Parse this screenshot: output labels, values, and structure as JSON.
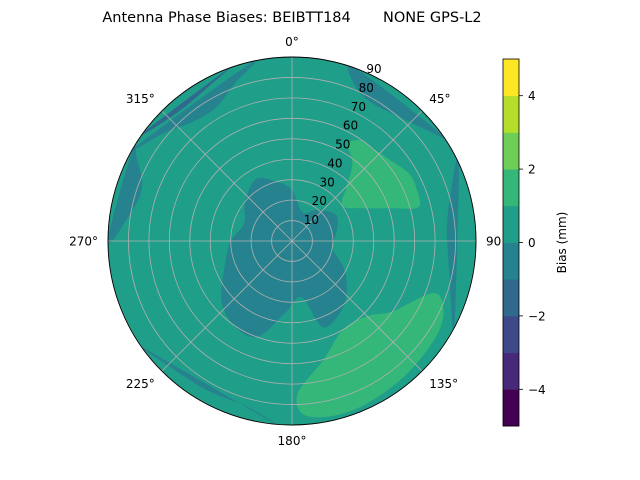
{
  "chart_data": {
    "type": "polar-contour",
    "title": "Antenna Phase Biases: BEIBTT184       NONE GPS-L2",
    "azimuth_ticks": [
      {
        "deg": 0,
        "label": "0°"
      },
      {
        "deg": 45,
        "label": "45°"
      },
      {
        "deg": 90,
        "label": "90"
      },
      {
        "deg": 135,
        "label": "135°"
      },
      {
        "deg": 180,
        "label": "180°"
      },
      {
        "deg": 225,
        "label": "225°"
      },
      {
        "deg": 270,
        "label": "270°"
      },
      {
        "deg": 315,
        "label": "315°"
      }
    ],
    "radial_ticks": [
      {
        "value": 10,
        "label": "10"
      },
      {
        "value": 20,
        "label": "20"
      },
      {
        "value": 30,
        "label": "30"
      },
      {
        "value": 40,
        "label": "40"
      },
      {
        "value": 50,
        "label": "50"
      },
      {
        "value": 60,
        "label": "60"
      },
      {
        "value": 70,
        "label": "70"
      },
      {
        "value": 80,
        "label": "80"
      },
      {
        "value": 90,
        "label": "90"
      }
    ],
    "rlim": [
      0,
      90
    ],
    "grid": true,
    "background_level": 0.5,
    "regions": [
      {
        "name": "ring-zone",
        "level": 0.5,
        "points": [
          [
            0,
            40
          ],
          [
            20,
            40
          ],
          [
            40,
            45
          ],
          [
            50,
            48
          ],
          [
            60,
            40
          ],
          [
            75,
            35
          ],
          [
            90,
            38
          ],
          [
            110,
            42
          ],
          [
            125,
            40
          ],
          [
            140,
            38
          ],
          [
            160,
            40
          ],
          [
            180,
            45
          ],
          [
            200,
            45
          ],
          [
            220,
            45
          ],
          [
            240,
            46
          ],
          [
            255,
            48
          ],
          [
            270,
            45
          ],
          [
            285,
            40
          ],
          [
            300,
            40
          ],
          [
            315,
            38
          ],
          [
            330,
            40
          ],
          [
            345,
            40
          ]
        ]
      },
      {
        "name": "ne-positive",
        "level": 1.5,
        "points": [
          [
            30,
            55
          ],
          [
            38,
            48
          ],
          [
            45,
            38
          ],
          [
            55,
            30
          ],
          [
            65,
            38
          ],
          [
            72,
            52
          ],
          [
            75,
            64
          ],
          [
            68,
            66
          ],
          [
            60,
            66
          ],
          [
            50,
            62
          ],
          [
            40,
            60
          ],
          [
            35,
            60
          ]
        ]
      },
      {
        "name": "se-positive",
        "level": 1.5,
        "points": [
          [
            110,
            75
          ],
          [
            125,
            60
          ],
          [
            135,
            52
          ],
          [
            150,
            50
          ],
          [
            165,
            60
          ],
          [
            178,
            75
          ],
          [
            175,
            86
          ],
          [
            160,
            88
          ],
          [
            140,
            86
          ],
          [
            120,
            84
          ]
        ]
      },
      {
        "name": "center-negative",
        "level": -0.5,
        "points": [
          [
            0,
            25
          ],
          [
            20,
            15
          ],
          [
            40,
            20
          ],
          [
            60,
            25
          ],
          [
            80,
            22
          ],
          [
            100,
            20
          ],
          [
            120,
            30
          ],
          [
            140,
            40
          ],
          [
            160,
            45
          ],
          [
            170,
            28
          ],
          [
            185,
            35
          ],
          [
            200,
            50
          ],
          [
            215,
            50
          ],
          [
            230,
            45
          ],
          [
            250,
            35
          ],
          [
            270,
            30
          ],
          [
            290,
            25
          ],
          [
            310,
            30
          ],
          [
            330,
            35
          ],
          [
            345,
            30
          ]
        ]
      },
      {
        "name": "nw-rim-negative",
        "level": -0.5,
        "points": [
          [
            300,
            90
          ],
          [
            310,
            82
          ],
          [
            320,
            76
          ],
          [
            330,
            75
          ],
          [
            340,
            82
          ],
          [
            348,
            90
          ]
        ]
      },
      {
        "name": "west-rim-negative",
        "level": -0.5,
        "points": [
          [
            270,
            90
          ],
          [
            280,
            80
          ],
          [
            290,
            78
          ],
          [
            298,
            86
          ],
          [
            300,
            90
          ]
        ]
      },
      {
        "name": "ne-rim-negative",
        "level": -0.5,
        "points": [
          [
            20,
            90
          ],
          [
            22,
            82
          ],
          [
            30,
            78
          ],
          [
            40,
            80
          ],
          [
            50,
            85
          ],
          [
            55,
            90
          ]
        ]
      },
      {
        "name": "east-rim-negative",
        "level": -0.5,
        "points": [
          [
            65,
            90
          ],
          [
            72,
            82
          ],
          [
            85,
            76
          ],
          [
            100,
            78
          ],
          [
            112,
            84
          ],
          [
            118,
            90
          ]
        ]
      },
      {
        "name": "south-rim-negative",
        "level": -0.5,
        "points": [
          [
            185,
            90
          ],
          [
            195,
            84
          ],
          [
            210,
            84
          ],
          [
            225,
            86
          ],
          [
            235,
            90
          ]
        ]
      },
      {
        "name": "nw-deep-negative",
        "level": -1.5,
        "points": [
          [
            306,
            90
          ],
          [
            312,
            86
          ],
          [
            322,
            84
          ],
          [
            332,
            86
          ],
          [
            340,
            90
          ]
        ]
      }
    ],
    "colorbar": {
      "label": "Bias (mm)",
      "min": -5,
      "max": 5,
      "levels": [
        -5,
        -4,
        -3,
        -2,
        -1,
        0,
        1,
        2,
        3,
        4,
        5
      ],
      "ticks": [
        {
          "value": -4,
          "label": "−4"
        },
        {
          "value": -2,
          "label": "−2"
        },
        {
          "value": 0,
          "label": "0"
        },
        {
          "value": 2,
          "label": "2"
        },
        {
          "value": 4,
          "label": "4"
        }
      ],
      "colors": [
        "#440154",
        "#482878",
        "#3e4989",
        "#31688e",
        "#26828e",
        "#1f9e89",
        "#35b779",
        "#6ece58",
        "#b5de2b",
        "#fde725"
      ]
    }
  }
}
